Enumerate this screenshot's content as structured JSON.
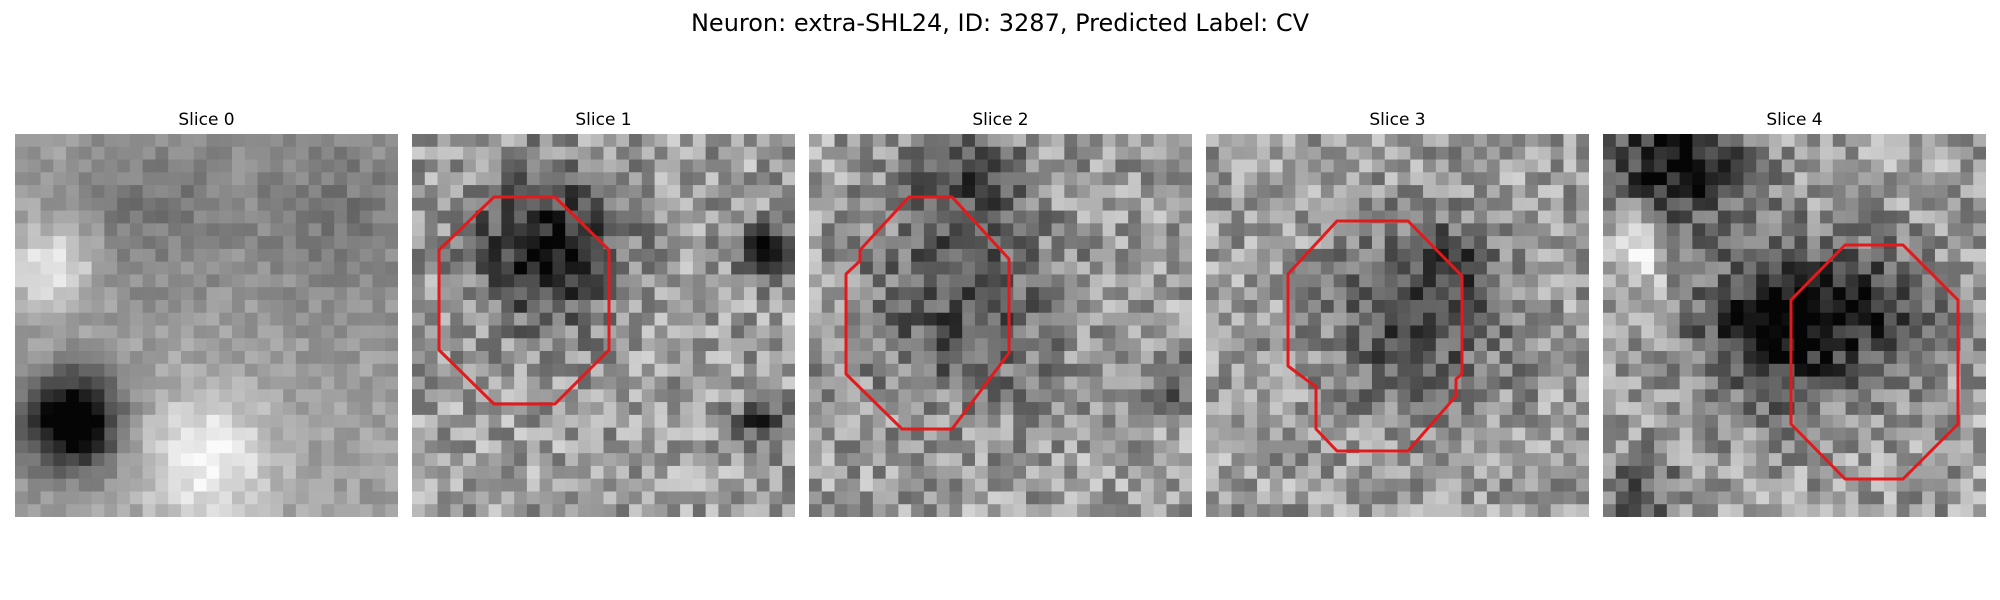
{
  "figure": {
    "title": "Neuron: extra-SHL24, ID: 3287, Predicted Label: CV"
  },
  "panels": [
    {
      "title": "Slice 0",
      "has_outline": false,
      "seed": 11,
      "blobs": [
        [
          0.15,
          0.75,
          0.14,
          -0.8
        ],
        [
          0.85,
          0.2,
          0.3,
          -0.15
        ],
        [
          0.35,
          0.2,
          0.25,
          -0.15
        ],
        [
          0.5,
          0.85,
          0.2,
          0.35
        ],
        [
          0.1,
          0.35,
          0.12,
          0.35
        ]
      ]
    },
    {
      "title": "Slice 1",
      "has_outline": true,
      "seed": 23,
      "blobs": [
        [
          0.35,
          0.3,
          0.22,
          -0.55
        ],
        [
          0.92,
          0.3,
          0.08,
          -0.7
        ],
        [
          0.92,
          0.75,
          0.08,
          -0.45
        ]
      ]
    },
    {
      "title": "Slice 2",
      "has_outline": true,
      "seed": 37,
      "blobs": [
        [
          0.4,
          0.45,
          0.3,
          -0.3
        ],
        [
          0.4,
          0.1,
          0.18,
          -0.3
        ],
        [
          0.95,
          0.65,
          0.08,
          -0.35
        ]
      ]
    },
    {
      "title": "Slice 3",
      "has_outline": true,
      "seed": 41,
      "blobs": [
        [
          0.55,
          0.5,
          0.28,
          -0.32
        ],
        [
          0.65,
          0.35,
          0.15,
          -0.2
        ]
      ]
    },
    {
      "title": "Slice 4",
      "has_outline": true,
      "seed": 53,
      "blobs": [
        [
          0.45,
          0.5,
          0.23,
          -0.6
        ],
        [
          0.2,
          0.06,
          0.2,
          -0.6
        ],
        [
          0.7,
          0.45,
          0.2,
          -0.35
        ],
        [
          0.1,
          0.95,
          0.12,
          -0.3
        ],
        [
          0.1,
          0.3,
          0.1,
          0.35
        ]
      ]
    }
  ],
  "colors": {
    "outline": "#e31a1c"
  }
}
